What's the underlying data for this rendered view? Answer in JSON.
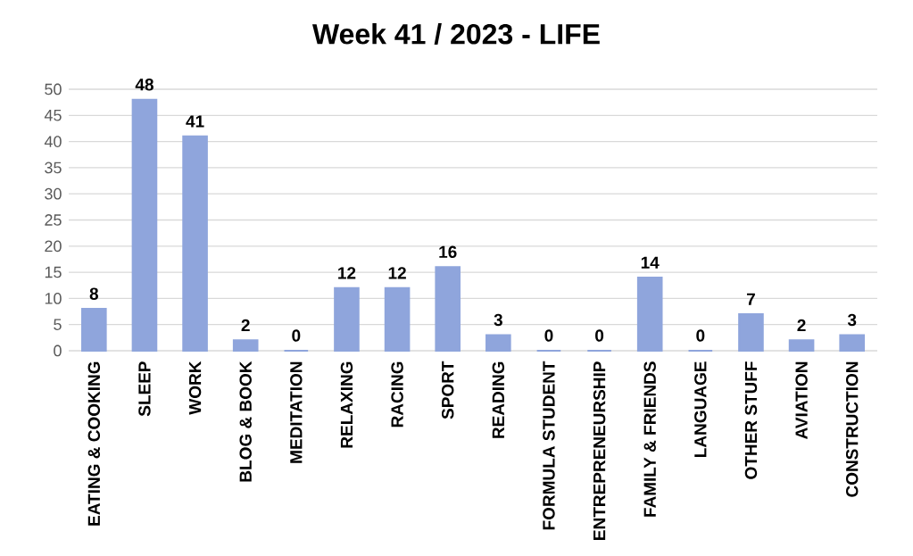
{
  "chart_data": {
    "type": "bar",
    "title": "Week 41 / 2023 - LIFE",
    "categories": [
      "EATING & COOKING",
      "SLEEP",
      "WORK",
      "BLOG & BOOK",
      "MEDITATION",
      "RELAXING",
      "RACING",
      "SPORT",
      "READING",
      "FORMULA STUDENT",
      "ENTREPRENEURSHIP",
      "FAMILY & FRIENDS",
      "LANGUAGE",
      "OTHER STUFF",
      "AVIATION",
      "CONSTRUCTION"
    ],
    "values": [
      8,
      48,
      41,
      2,
      0,
      12,
      12,
      16,
      3,
      0,
      0,
      14,
      0,
      7,
      2,
      3
    ],
    "color": "#8fa5dc",
    "ylim": [
      0,
      50
    ],
    "yticks": [
      0,
      5,
      10,
      15,
      20,
      25,
      30,
      35,
      40,
      45,
      50
    ],
    "grid": "y",
    "data_labels": true
  }
}
